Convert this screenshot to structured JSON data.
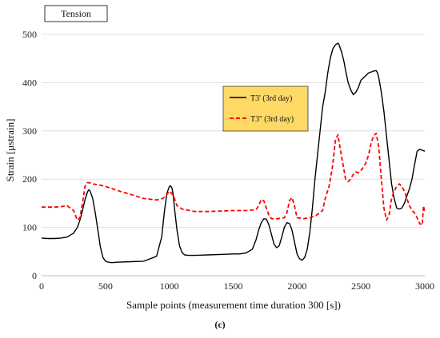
{
  "chart_data": {
    "type": "line",
    "annotation": "Tension",
    "xlabel": "Sample points (measurement time duration 300 [s])",
    "ylabel": "Strain [μstrain]",
    "caption": "(c)",
    "xlim": [
      0,
      3000
    ],
    "ylim": [
      0,
      500
    ],
    "xticks": [
      0,
      500,
      1000,
      1500,
      2000,
      2500,
      3000
    ],
    "yticks": [
      0,
      100,
      200,
      300,
      400,
      500
    ],
    "grid": "horizontal",
    "legend_placement": "center-right",
    "legend_background": "#FFD966",
    "series": [
      {
        "name": "T3' (3rd day)",
        "color": "#000000",
        "dash": "solid",
        "x": [
          0,
          50,
          100,
          150,
          200,
          250,
          280,
          300,
          320,
          340,
          360,
          370,
          380,
          400,
          420,
          440,
          460,
          480,
          500,
          520,
          550,
          600,
          700,
          800,
          900,
          940,
          960,
          980,
          1000,
          1010,
          1020,
          1030,
          1040,
          1060,
          1080,
          1100,
          1120,
          1150,
          1200,
          1300,
          1400,
          1500,
          1550,
          1600,
          1650,
          1680,
          1700,
          1720,
          1740,
          1760,
          1780,
          1800,
          1820,
          1840,
          1860,
          1880,
          1900,
          1920,
          1940,
          1960,
          1980,
          2000,
          2020,
          2040,
          2060,
          2080,
          2100,
          2120,
          2140,
          2160,
          2180,
          2200,
          2220,
          2240,
          2260,
          2280,
          2300,
          2320,
          2330,
          2340,
          2350,
          2360,
          2370,
          2380,
          2400,
          2420,
          2440,
          2460,
          2480,
          2500,
          2520,
          2540,
          2560,
          2580,
          2600,
          2620,
          2630,
          2640,
          2660,
          2680,
          2700,
          2720,
          2740,
          2760,
          2780,
          2800,
          2820,
          2840,
          2860,
          2880,
          2900,
          2920,
          2940,
          2960,
          2980,
          3000
        ],
        "y": [
          78,
          77,
          77,
          78,
          80,
          88,
          100,
          115,
          135,
          158,
          174,
          178,
          175,
          160,
          130,
          95,
          60,
          38,
          30,
          28,
          27,
          28,
          29,
          30,
          40,
          80,
          130,
          170,
          185,
          186,
          182,
          168,
          140,
          95,
          62,
          48,
          43,
          42,
          42,
          43,
          44,
          45,
          45,
          47,
          55,
          75,
          95,
          110,
          118,
          117,
          105,
          85,
          65,
          58,
          62,
          80,
          100,
          110,
          108,
          95,
          70,
          45,
          35,
          32,
          38,
          55,
          90,
          140,
          200,
          250,
          300,
          350,
          380,
          420,
          450,
          470,
          478,
          482,
          478,
          470,
          462,
          452,
          440,
          425,
          400,
          385,
          375,
          380,
          390,
          405,
          410,
          415,
          420,
          422,
          424,
          425,
          420,
          410,
          380,
          340,
          290,
          240,
          190,
          160,
          140,
          138,
          140,
          150,
          165,
          180,
          200,
          230,
          258,
          262,
          260,
          258
        ]
      },
      {
        "name": "T3'' (3rd day)",
        "color": "#FF0000",
        "dash": "dashed",
        "x": [
          0,
          50,
          100,
          150,
          200,
          250,
          280,
          300,
          320,
          340,
          360,
          380,
          400,
          450,
          500,
          600,
          700,
          800,
          900,
          950,
          980,
          1000,
          1020,
          1040,
          1060,
          1100,
          1200,
          1300,
          1400,
          1500,
          1600,
          1650,
          1680,
          1700,
          1720,
          1740,
          1760,
          1780,
          1800,
          1850,
          1900,
          1920,
          1940,
          1960,
          1980,
          2000,
          2050,
          2100,
          2150,
          2200,
          2220,
          2250,
          2280,
          2300,
          2320,
          2340,
          2360,
          2380,
          2400,
          2420,
          2440,
          2460,
          2480,
          2500,
          2520,
          2540,
          2560,
          2580,
          2600,
          2620,
          2640,
          2660,
          2680,
          2700,
          2720,
          2740,
          2760,
          2780,
          2800,
          2820,
          2840,
          2860,
          2880,
          2900,
          2920,
          2940,
          2960,
          2980,
          2990,
          3000
        ],
        "y": [
          142,
          142,
          142,
          143,
          145,
          135,
          115,
          120,
          150,
          185,
          193,
          192,
          190,
          188,
          185,
          176,
          168,
          160,
          157,
          160,
          168,
          175,
          170,
          160,
          145,
          138,
          133,
          133,
          134,
          135,
          135,
          136,
          137,
          145,
          158,
          155,
          140,
          125,
          118,
          118,
          120,
          130,
          155,
          162,
          145,
          120,
          118,
          120,
          125,
          135,
          160,
          185,
          230,
          280,
          292,
          260,
          230,
          200,
          195,
          200,
          210,
          215,
          213,
          218,
          225,
          235,
          250,
          275,
          290,
          295,
          265,
          200,
          140,
          115,
          125,
          160,
          175,
          185,
          190,
          185,
          175,
          160,
          145,
          135,
          130,
          120,
          108,
          105,
          145,
          130
        ]
      }
    ]
  }
}
